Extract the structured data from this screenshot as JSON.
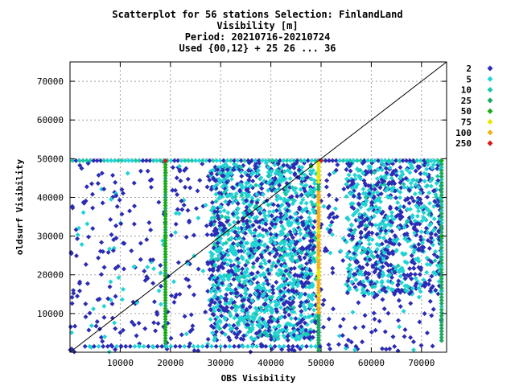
{
  "chart_data": {
    "type": "scatter",
    "title": [
      "Scatterplot for   56 stations Selection: FinlandLand",
      "Visibility [m]",
      "Period: 20210716-20210724",
      "Used {00,12} + 25 26 ... 36"
    ],
    "xlabel": "OBS Visibility",
    "ylabel": "oldsurf Visibility",
    "xlim": [
      0,
      75000
    ],
    "ylim": [
      0,
      75000
    ],
    "xticks": [
      "10000",
      "20000",
      "30000",
      "40000",
      "50000",
      "60000",
      "70000"
    ],
    "yticks": [
      "10000",
      "20000",
      "30000",
      "40000",
      "50000",
      "60000",
      "70000"
    ],
    "grid": true,
    "diagonal_line": true,
    "legend_position": "right",
    "legend": [
      {
        "label": "2",
        "color": "#2b2bb4"
      },
      {
        "label": "5",
        "color": "#22d3d3"
      },
      {
        "label": "10",
        "color": "#19c6a8"
      },
      {
        "label": "25",
        "color": "#18a860"
      },
      {
        "label": "50",
        "color": "#1aaa1a"
      },
      {
        "label": "75",
        "color": "#e6e600"
      },
      {
        "label": "100",
        "color": "#f5b010"
      },
      {
        "label": "250",
        "color": "#d81818"
      }
    ],
    "series_note": "dense cloud; count bins shown by color",
    "points": [
      {
        "x": 48000,
        "y": 48000,
        "c": 4
      },
      {
        "x": 19000,
        "y": 49500,
        "c": 7
      },
      {
        "x": 50000,
        "y": 49500,
        "c": 7
      },
      {
        "x": 49500,
        "y": 30000,
        "c": 6
      },
      {
        "x": 49500,
        "y": 20000,
        "c": 5
      },
      {
        "x": 19000,
        "y": 30000,
        "c": 4
      },
      {
        "x": 74000,
        "y": 49500,
        "c": 4
      },
      {
        "x": 74000,
        "y": 30000,
        "c": 4
      }
    ]
  }
}
